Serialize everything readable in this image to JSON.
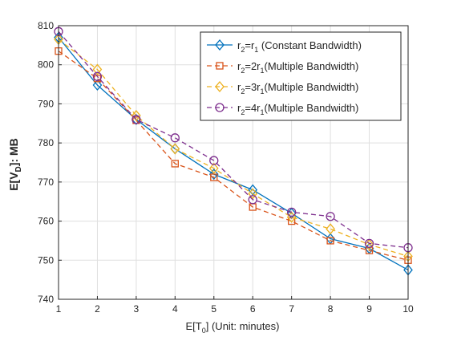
{
  "chart_data": {
    "type": "line",
    "xlabel_main": "E[T",
    "xlabel_sub": "0",
    "xlabel_tail": "] (Unit: minutes)",
    "ylabel_main": "E[V",
    "ylabel_sub": "D",
    "ylabel_tail": "]: MB",
    "xlim": [
      1,
      10
    ],
    "ylim": [
      740,
      810
    ],
    "xticks": [
      1,
      2,
      3,
      4,
      5,
      6,
      7,
      8,
      9,
      10
    ],
    "yticks": [
      740,
      750,
      760,
      770,
      780,
      790,
      800,
      810
    ],
    "grid": true,
    "legend_position": "top-right",
    "x": [
      1,
      2,
      3,
      4,
      5,
      6,
      7,
      8,
      9,
      10
    ],
    "series": [
      {
        "legend": [
          [
            "r",
            ""
          ],
          [
            "2",
            "sub"
          ],
          [
            "=r",
            ""
          ],
          [
            "1",
            "sub"
          ],
          [
            " (Constant Bandwidth)",
            ""
          ]
        ],
        "color": "#0072BD",
        "dash": "",
        "marker": "diamond",
        "values": [
          807,
          794.8,
          786,
          778.5,
          772,
          768,
          762,
          755.5,
          753,
          747.5
        ]
      },
      {
        "legend": [
          [
            "r",
            ""
          ],
          [
            "2",
            "sub"
          ],
          [
            "=2r",
            ""
          ],
          [
            "1",
            "sub"
          ],
          [
            "(Multiple Bandwidth)",
            ""
          ]
        ],
        "color": "#D95319",
        "dash": "6,4",
        "marker": "square",
        "values": [
          803.5,
          796.5,
          785.8,
          774.7,
          771.2,
          763.6,
          760,
          755,
          752.5,
          750
        ]
      },
      {
        "legend": [
          [
            "r",
            ""
          ],
          [
            "2",
            "sub"
          ],
          [
            "=3r",
            ""
          ],
          [
            "1",
            "sub"
          ],
          [
            "(Multiple Bandwidth)",
            ""
          ]
        ],
        "color": "#EDB120",
        "dash": "6,4",
        "marker": "diamond",
        "values": [
          806.5,
          798.8,
          787,
          778.5,
          773.5,
          767,
          761,
          758,
          754,
          751
        ]
      },
      {
        "legend": [
          [
            "r",
            ""
          ],
          [
            "2",
            "sub"
          ],
          [
            "=4r",
            ""
          ],
          [
            "1",
            "sub"
          ],
          [
            "(Multiple Bandwidth)",
            ""
          ]
        ],
        "color": "#7E2F8E",
        "dash": "6,4",
        "marker": "circle",
        "values": [
          808.5,
          797,
          786,
          781.3,
          775.5,
          765.5,
          762.3,
          761.2,
          754.3,
          753.2
        ]
      }
    ]
  }
}
